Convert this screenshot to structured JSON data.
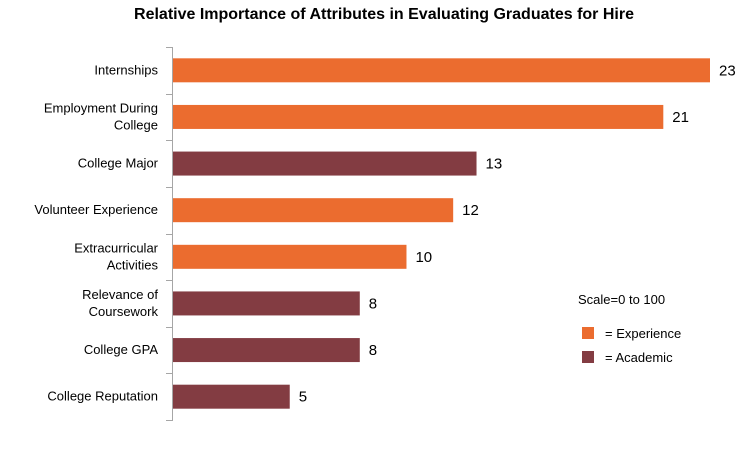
{
  "chart_data": {
    "type": "bar",
    "orientation": "horizontal",
    "title": "Relative Importance of Attributes in Evaluating Graduates for Hire",
    "categories": [
      [
        "Internships"
      ],
      [
        "Employment During",
        "College"
      ],
      [
        "College Major"
      ],
      [
        "Volunteer Experience"
      ],
      [
        "Extracurricular",
        "Activities"
      ],
      [
        "Relevance of",
        "Coursework"
      ],
      [
        "College GPA"
      ],
      [
        "College Reputation"
      ]
    ],
    "values": [
      23,
      21,
      13,
      12,
      10,
      8,
      8,
      5
    ],
    "groups": [
      "experience",
      "experience",
      "academic",
      "experience",
      "experience",
      "academic",
      "academic",
      "academic"
    ],
    "xlim": [
      0,
      23
    ],
    "grid": false,
    "annotation": "Scale=0 to 100",
    "legend": {
      "placement": "right",
      "entries": [
        {
          "key": "experience",
          "label": "= Experience",
          "color": "#EB6C2F"
        },
        {
          "key": "academic",
          "label": "= Academic",
          "color": "#833C42"
        }
      ]
    }
  }
}
